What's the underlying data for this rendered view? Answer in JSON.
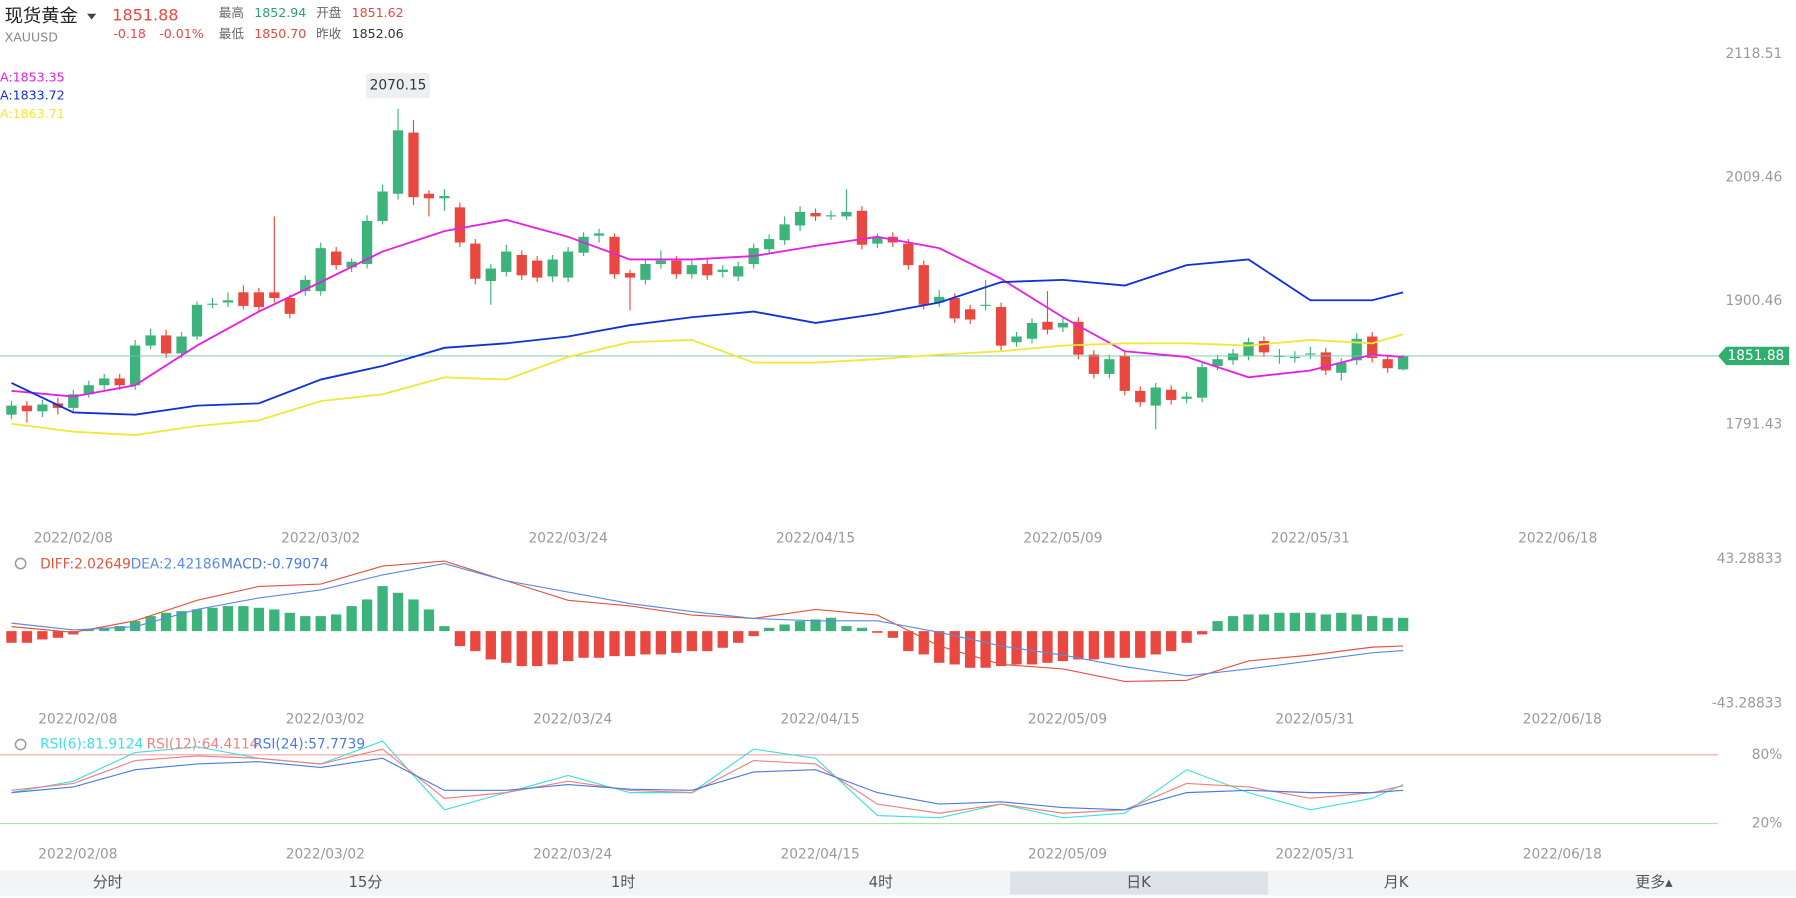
{
  "header": {
    "title": "现货黄金",
    "symbol": "XAUUSD",
    "price": "1851.88",
    "change": "-0.18",
    "change_pct": "-0.01%",
    "stats": [
      {
        "label": "最高",
        "value": "1852.94",
        "color": "#2aa36b"
      },
      {
        "label": "开盘",
        "value": "1851.62",
        "color": "#e8483f"
      },
      {
        "label": "最低",
        "value": "1850.70",
        "color": "#e8483f"
      },
      {
        "label": "昨收",
        "value": "1852.06",
        "color": "#333333"
      }
    ],
    "tabs": [
      "分时",
      "15分",
      "1时",
      "4时",
      "日K",
      "月K",
      "更多▴"
    ],
    "selected_tab": 4
  },
  "chart_data": [
    {
      "type": "candlestick",
      "up_color": "#3cb37a",
      "down_color": "#e8483f",
      "ylim": [
        1704,
        2164
      ],
      "yticks": [
        2118.51,
        2009.46,
        1900.46,
        1791.43
      ],
      "xticks": [
        {
          "value": 4,
          "label": "2022/02/08"
        },
        {
          "value": 20,
          "label": "2022/03/02"
        },
        {
          "value": 36,
          "label": "2022/03/24"
        },
        {
          "value": 52,
          "label": "2022/04/15"
        },
        {
          "value": 68,
          "label": "2022/05/09"
        },
        {
          "value": 84,
          "label": "2022/05/31"
        },
        {
          "value": 100,
          "label": "2022/06/18"
        }
      ],
      "last_price": 1851.88,
      "last_price_label": "1851.88",
      "annotations": [
        {
          "text": "2070.15",
          "index": 25,
          "value": 2070.15
        }
      ],
      "ohlc": [
        [
          1800,
          1812,
          1796,
          1808
        ],
        [
          1808,
          1812,
          1793,
          1803
        ],
        [
          1803,
          1813,
          1798,
          1809
        ],
        [
          1810,
          1815,
          1800,
          1806
        ],
        [
          1806,
          1822,
          1803,
          1818
        ],
        [
          1818,
          1830,
          1815,
          1826
        ],
        [
          1826,
          1836,
          1822,
          1832
        ],
        [
          1832,
          1836,
          1822,
          1826
        ],
        [
          1826,
          1866,
          1822,
          1861
        ],
        [
          1861,
          1876,
          1858,
          1870
        ],
        [
          1870,
          1875,
          1850,
          1854
        ],
        [
          1854,
          1873,
          1850,
          1869
        ],
        [
          1869,
          1900,
          1866,
          1897
        ],
        [
          1897,
          1903,
          1894,
          1898
        ],
        [
          1899,
          1908,
          1895,
          1901
        ],
        [
          1908,
          1914,
          1893,
          1896
        ],
        [
          1908,
          1912,
          1891,
          1895
        ],
        [
          1908,
          1975,
          1899,
          1903
        ],
        [
          1903,
          1906,
          1885,
          1889
        ],
        [
          1909,
          1923,
          1905,
          1919
        ],
        [
          1909,
          1952,
          1905,
          1947
        ],
        [
          1944,
          1948,
          1928,
          1932
        ],
        [
          1930,
          1938,
          1926,
          1935
        ],
        [
          1933,
          1976,
          1929,
          1971
        ],
        [
          1971,
          2003,
          1968,
          1997
        ],
        [
          1995,
          2070.15,
          1990,
          2051
        ],
        [
          2049,
          2060,
          1985,
          1992
        ],
        [
          1995,
          1998,
          1975,
          1991
        ],
        [
          1991,
          1999,
          1980,
          1993
        ],
        [
          1983,
          1987,
          1948,
          1952
        ],
        [
          1951,
          1955,
          1915,
          1920
        ],
        [
          1918,
          1933,
          1897,
          1929
        ],
        [
          1926,
          1950,
          1922,
          1944
        ],
        [
          1941,
          1945,
          1919,
          1923
        ],
        [
          1936,
          1940,
          1917,
          1921
        ],
        [
          1922,
          1941,
          1917,
          1937
        ],
        [
          1921,
          1948,
          1917,
          1944
        ],
        [
          1943,
          1961,
          1940,
          1957
        ],
        [
          1958,
          1964,
          1952,
          1960
        ],
        [
          1957,
          1960,
          1920,
          1924
        ],
        [
          1925,
          1928,
          1892,
          1921
        ],
        [
          1919,
          1937,
          1915,
          1933
        ],
        [
          1933,
          1945,
          1929,
          1936
        ],
        [
          1936,
          1940,
          1920,
          1924
        ],
        [
          1924,
          1936,
          1920,
          1932
        ],
        [
          1933,
          1937,
          1919,
          1923
        ],
        [
          1926,
          1932,
          1921,
          1928
        ],
        [
          1922,
          1935,
          1918,
          1931
        ],
        [
          1933,
          1951,
          1929,
          1947
        ],
        [
          1946,
          1959,
          1942,
          1955
        ],
        [
          1954,
          1975,
          1950,
          1968
        ],
        [
          1967,
          1984,
          1962,
          1979
        ],
        [
          1978,
          1982,
          1971,
          1975
        ],
        [
          1975,
          1980,
          1972,
          1976
        ],
        [
          1975,
          1999,
          1972,
          1979
        ],
        [
          1980,
          1984,
          1946,
          1950
        ],
        [
          1951,
          1960,
          1947,
          1956
        ],
        [
          1957,
          1961,
          1948,
          1952
        ],
        [
          1951,
          1955,
          1928,
          1932
        ],
        [
          1932,
          1936,
          1893,
          1897
        ],
        [
          1899,
          1910,
          1895,
          1904
        ],
        [
          1903,
          1907,
          1881,
          1885
        ],
        [
          1893,
          1897,
          1880,
          1884
        ],
        [
          1896,
          1919,
          1892,
          1897
        ],
        [
          1895,
          1899,
          1857,
          1861
        ],
        [
          1864,
          1873,
          1860,
          1869
        ],
        [
          1867,
          1885,
          1863,
          1881
        ],
        [
          1882,
          1909,
          1871,
          1875
        ],
        [
          1877,
          1885,
          1873,
          1881
        ],
        [
          1882,
          1886,
          1849,
          1853
        ],
        [
          1853,
          1857,
          1832,
          1836
        ],
        [
          1836,
          1853,
          1832,
          1849
        ],
        [
          1852,
          1856,
          1817,
          1821
        ],
        [
          1821,
          1825,
          1807,
          1811
        ],
        [
          1808,
          1828,
          1787,
          1824
        ],
        [
          1822,
          1826,
          1809,
          1813
        ],
        [
          1814,
          1820,
          1810,
          1816
        ],
        [
          1815,
          1846,
          1811,
          1842
        ],
        [
          1843,
          1853,
          1839,
          1849
        ],
        [
          1848,
          1858,
          1844,
          1854
        ],
        [
          1852,
          1868,
          1848,
          1864
        ],
        [
          1865,
          1869,
          1851,
          1855
        ],
        [
          1851,
          1858,
          1845,
          1852
        ],
        [
          1850,
          1856,
          1846,
          1851
        ],
        [
          1853,
          1860,
          1849,
          1854
        ],
        [
          1855,
          1859,
          1835,
          1839
        ],
        [
          1837,
          1850,
          1830,
          1846
        ],
        [
          1848,
          1872,
          1844,
          1867
        ],
        [
          1869,
          1873,
          1846,
          1850
        ],
        [
          1849,
          1853,
          1837,
          1841
        ],
        [
          1840,
          1853,
          1839,
          1852
        ]
      ],
      "series": [
        {
          "name": "A:1853.35",
          "color": "#e61ee6",
          "x": [
            0,
            4,
            8,
            12,
            16,
            20,
            24,
            28,
            32,
            36,
            40,
            44,
            48,
            52,
            56,
            60,
            64,
            68,
            72,
            76,
            80,
            84,
            88,
            90
          ],
          "values": [
            1821,
            1816,
            1826,
            1861,
            1891,
            1917,
            1944,
            1962,
            1972,
            1957,
            1937,
            1937,
            1940,
            1949,
            1957,
            1947,
            1920,
            1886,
            1856,
            1851,
            1833,
            1839,
            1853,
            1851
          ]
        },
        {
          "name": "A:1833.72",
          "color": "#1030d8",
          "x": [
            0,
            4,
            8,
            12,
            16,
            20,
            24,
            28,
            32,
            36,
            40,
            44,
            48,
            52,
            56,
            60,
            64,
            68,
            72,
            76,
            80,
            84,
            88,
            90
          ],
          "values": [
            1828,
            1802,
            1800,
            1808,
            1810,
            1831,
            1843,
            1859,
            1863,
            1869,
            1879,
            1886,
            1891,
            1881,
            1889,
            1899,
            1917,
            1919,
            1914,
            1932,
            1937,
            1901,
            1901,
            1908
          ]
        },
        {
          "name": "A:1863.71",
          "color": "#f3e63a",
          "x": [
            0,
            4,
            8,
            12,
            16,
            20,
            24,
            28,
            32,
            36,
            40,
            44,
            48,
            52,
            56,
            60,
            64,
            68,
            72,
            76,
            80,
            84,
            88,
            90
          ],
          "values": [
            1792,
            1785,
            1782,
            1790,
            1795,
            1812,
            1818,
            1833,
            1831,
            1851,
            1864,
            1866,
            1846,
            1846,
            1849,
            1853,
            1856,
            1861,
            1863,
            1863,
            1861,
            1866,
            1863,
            1871
          ]
        }
      ]
    },
    {
      "type": "bar",
      "up_color": "#3cb37a",
      "down_color": "#e8483f",
      "ylim": [
        -43.28833,
        43.28833
      ],
      "yticks": [
        43.28833,
        -43.28833
      ],
      "xticks": [
        {
          "value": 4,
          "label": "2022/02/08"
        },
        {
          "value": 20,
          "label": "2022/03/02"
        },
        {
          "value": 36,
          "label": "2022/03/24"
        },
        {
          "value": 52,
          "label": "2022/04/15"
        },
        {
          "value": 68,
          "label": "2022/05/09"
        },
        {
          "value": 84,
          "label": "2022/05/31"
        },
        {
          "value": 100,
          "label": "2022/06/18"
        }
      ],
      "bar_name": "MACD:-0.79074",
      "bar_name_color": "#4a7be0",
      "values": [
        -7,
        -7,
        -5,
        -4,
        -2,
        1,
        2,
        3,
        6,
        9,
        11,
        12,
        13,
        14,
        15,
        15,
        14,
        13,
        11,
        9,
        9,
        10,
        15,
        19,
        27,
        23,
        19,
        13,
        3,
        -9,
        -12,
        -17,
        -19,
        -21,
        -21,
        -20,
        -18,
        -16,
        -16,
        -15,
        -15,
        -14,
        -14,
        -13,
        -12,
        -12,
        -10,
        -7,
        -3,
        2,
        4,
        6,
        7,
        8,
        3,
        2,
        -1,
        -4,
        -12,
        -14,
        -19,
        -20,
        -22,
        -22,
        -21,
        -20,
        -20,
        -19,
        -18,
        -17,
        -17,
        -16,
        -16,
        -16,
        -14,
        -12,
        -7,
        -2,
        6,
        9,
        10,
        10,
        11,
        11,
        11,
        10,
        11,
        10,
        9,
        8,
        8
      ],
      "series": [
        {
          "name": "DIFF:2.02649",
          "color": "#e2553f",
          "x": [
            0,
            4,
            8,
            12,
            16,
            20,
            24,
            28,
            32,
            36,
            40,
            44,
            48,
            52,
            56,
            60,
            64,
            68,
            72,
            76,
            80,
            84,
            88,
            90
          ],
          "values": [
            2.7,
            -0.7,
            6.2,
            18.5,
            26.8,
            28.2,
            39,
            42,
            30.2,
            18.5,
            15.1,
            9.6,
            7.6,
            13,
            9.6,
            -8.9,
            -19.9,
            -22.7,
            -30.2,
            -29.5,
            -17.9,
            -14.4,
            -9.6,
            -8.9
          ]
        },
        {
          "name": "DEA:2.42186",
          "color": "#5b8ae6",
          "x": [
            0,
            4,
            8,
            12,
            16,
            20,
            24,
            28,
            32,
            36,
            40,
            44,
            48,
            52,
            56,
            60,
            64,
            68,
            72,
            76,
            80,
            84,
            88,
            90
          ],
          "values": [
            4.8,
            0.7,
            2.7,
            13,
            19.9,
            24.7,
            33.7,
            40.5,
            30.2,
            23.4,
            16.5,
            11.7,
            7.6,
            6.2,
            6.2,
            -0.7,
            -8.9,
            -14.4,
            -21.3,
            -26.8,
            -22.7,
            -17.9,
            -13,
            -11.7
          ]
        }
      ]
    },
    {
      "type": "line",
      "ylim": [
        -15,
        97
      ],
      "yticks": [
        {
          "value": 80,
          "label": "80%"
        },
        {
          "value": 20,
          "label": "20%"
        }
      ],
      "tick_line_colors": [
        "#f5a3a3",
        "#a3e8a3"
      ],
      "xticks": [
        {
          "value": 4,
          "label": "2022/02/08"
        },
        {
          "value": 20,
          "label": "2022/03/02"
        },
        {
          "value": 36,
          "label": "2022/03/24"
        },
        {
          "value": 52,
          "label": "2022/04/15"
        },
        {
          "value": 68,
          "label": "2022/05/09"
        },
        {
          "value": 84,
          "label": "2022/05/31"
        },
        {
          "value": 100,
          "label": "2022/06/18"
        }
      ],
      "series": [
        {
          "name": "RSI(6):81.9124",
          "color": "#3ee0e0",
          "x": [
            0,
            4,
            8,
            12,
            16,
            20,
            24,
            28,
            32,
            36,
            40,
            44,
            48,
            52,
            56,
            60,
            64,
            68,
            72,
            76,
            80,
            84,
            88,
            90
          ],
          "values": [
            47,
            57,
            82,
            87,
            77,
            72,
            92,
            32,
            47,
            62,
            47,
            47,
            85,
            77,
            27,
            25,
            37,
            25,
            29,
            67,
            47,
            32,
            42,
            54
          ]
        },
        {
          "name": "RSI(12):64.4114",
          "color": "#f08080",
          "x": [
            0,
            4,
            8,
            12,
            16,
            20,
            24,
            28,
            32,
            36,
            40,
            44,
            48,
            52,
            56,
            60,
            64,
            68,
            72,
            76,
            80,
            84,
            88,
            90
          ],
          "values": [
            49,
            55,
            75,
            79,
            77,
            72,
            85,
            42,
            47,
            57,
            49,
            47,
            75,
            72,
            37,
            29,
            37,
            29,
            32,
            55,
            52,
            42,
            47,
            53
          ]
        },
        {
          "name": "RSI(24):57.7739",
          "color": "#4a7be0",
          "x": [
            0,
            4,
            8,
            12,
            16,
            20,
            24,
            28,
            32,
            36,
            40,
            44,
            48,
            52,
            56,
            60,
            64,
            68,
            72,
            76,
            80,
            84,
            88,
            90
          ],
          "values": [
            47,
            52,
            67,
            72,
            74,
            69,
            77,
            49,
            49,
            54,
            50,
            49,
            65,
            67,
            47,
            37,
            39,
            34,
            32,
            47,
            49,
            47,
            47,
            49
          ]
        }
      ]
    }
  ]
}
